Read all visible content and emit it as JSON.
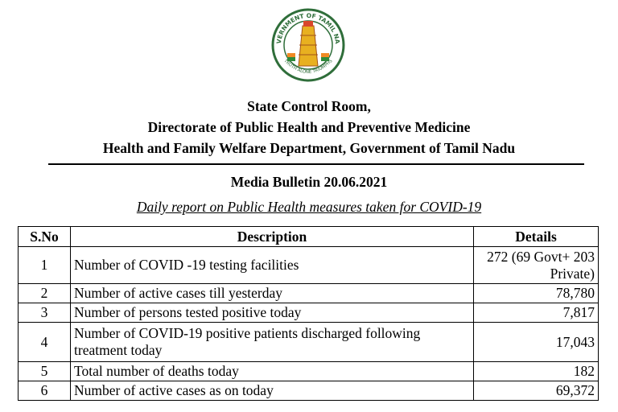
{
  "emblem": {
    "top_text": "GOVERNMENT OF TAMIL NADU",
    "motto": "TRUTH ALONE TRIUMPHS"
  },
  "header": {
    "lines": [
      "State Control Room,",
      "Directorate of Public Health and Preventive Medicine",
      "Health and Family Welfare Department, Government of Tamil Nadu"
    ],
    "bulletin": "Media Bulletin 20.06.2021",
    "subtitle": "Daily report on Public Health measures taken for COVID-19"
  },
  "table": {
    "columns": [
      "S.No",
      "Description",
      "Details"
    ],
    "rows": [
      [
        "1",
        "Number of COVID -19 testing facilities",
        "272 (69 Govt+ 203 Private)"
      ],
      [
        "2",
        "Number of active cases till yesterday",
        "78,780"
      ],
      [
        "3",
        "Number of persons tested positive today",
        "7,817"
      ],
      [
        "4",
        "Number of COVID-19 positive patients discharged following treatment today",
        "17,043"
      ],
      [
        "5",
        "Total number of deaths today",
        "182"
      ],
      [
        "6",
        "Number of active cases as on today",
        "69,372"
      ]
    ]
  }
}
